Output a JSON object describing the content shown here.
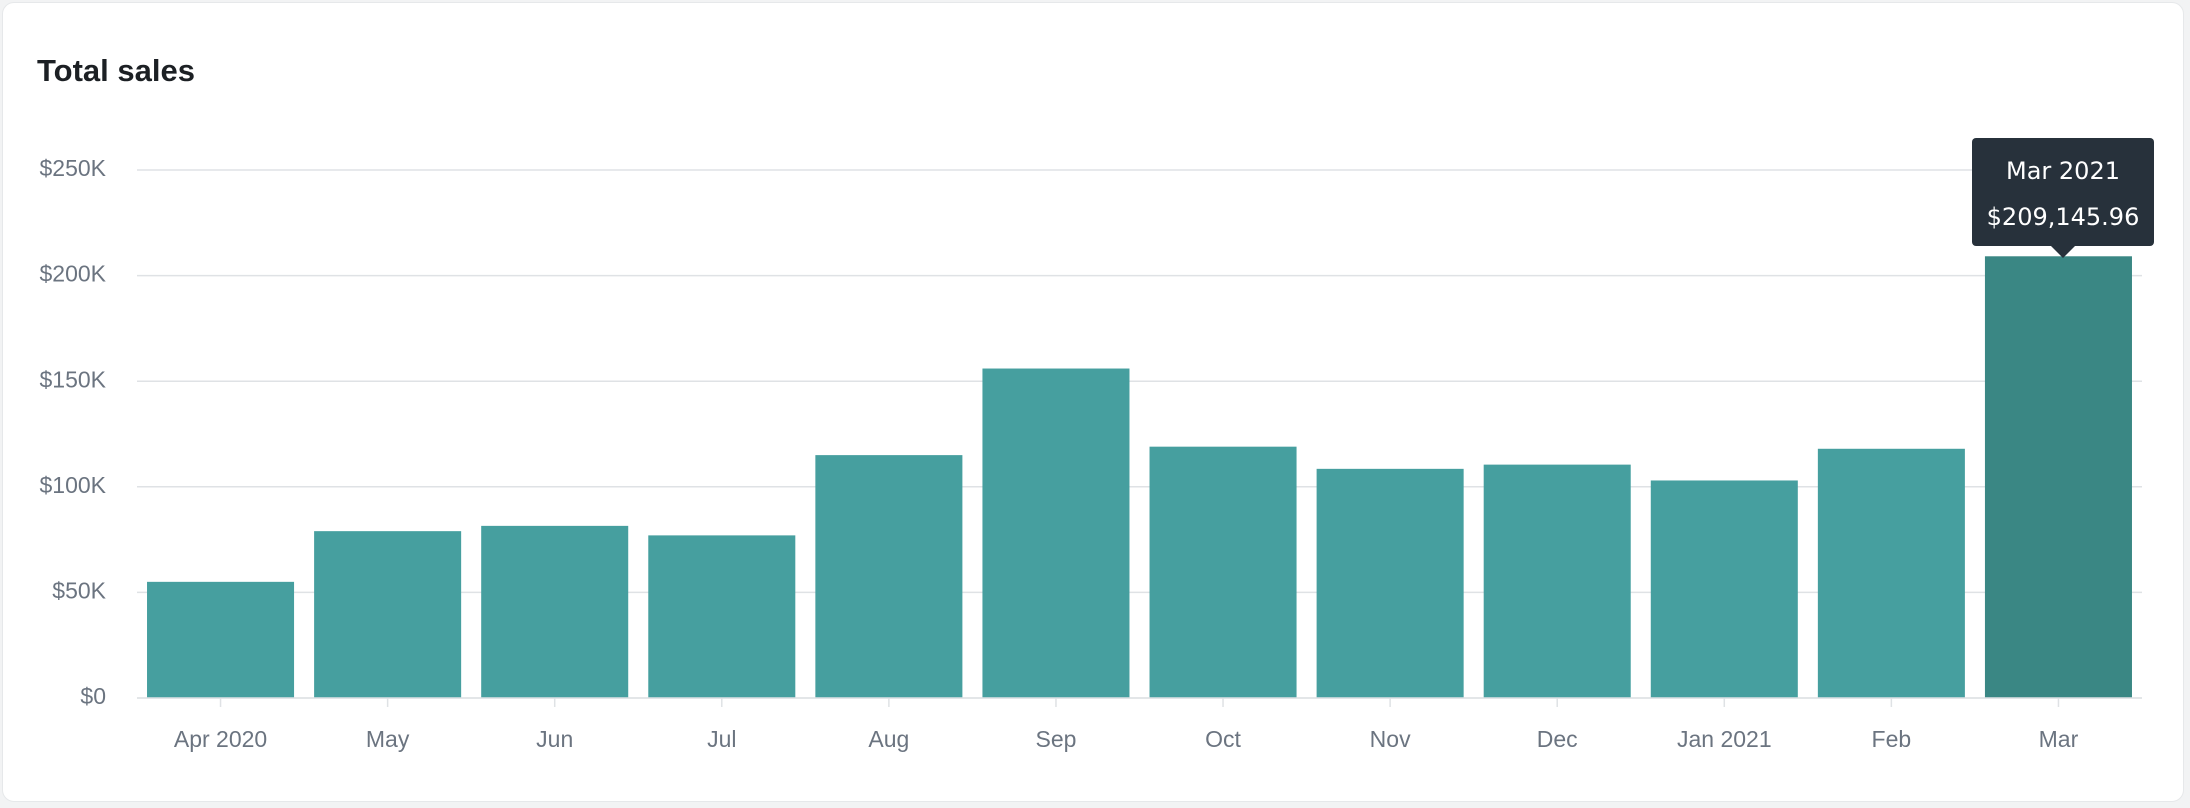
{
  "card": {
    "title": "Total sales"
  },
  "tooltip": {
    "label": "Mar 2021",
    "value": "$209,145.96"
  },
  "colors": {
    "bar": "#469f9f",
    "bar_highlight": "#3a8784",
    "grid": "#dfe2e5",
    "axis_text": "#6b7480",
    "tooltip_bg": "#27313b"
  },
  "chart_data": {
    "type": "bar",
    "categories": [
      "Apr 2020",
      "May",
      "Jun",
      "Jul",
      "Aug",
      "Sep",
      "Oct",
      "Nov",
      "Dec",
      "Jan 2021",
      "Feb",
      "Mar"
    ],
    "values": [
      55000,
      79000,
      81500,
      77000,
      115000,
      156000,
      119000,
      108500,
      110500,
      103000,
      118000,
      209145.96
    ],
    "ylim": [
      0,
      250000
    ],
    "yticks": [
      0,
      50000,
      100000,
      150000,
      200000,
      250000
    ],
    "ytick_labels": [
      "$0",
      "$50K",
      "$100K",
      "$150K",
      "$200K",
      "$250K"
    ],
    "highlight_index": 11,
    "grid": true,
    "title": "",
    "xlabel": "",
    "ylabel": ""
  }
}
